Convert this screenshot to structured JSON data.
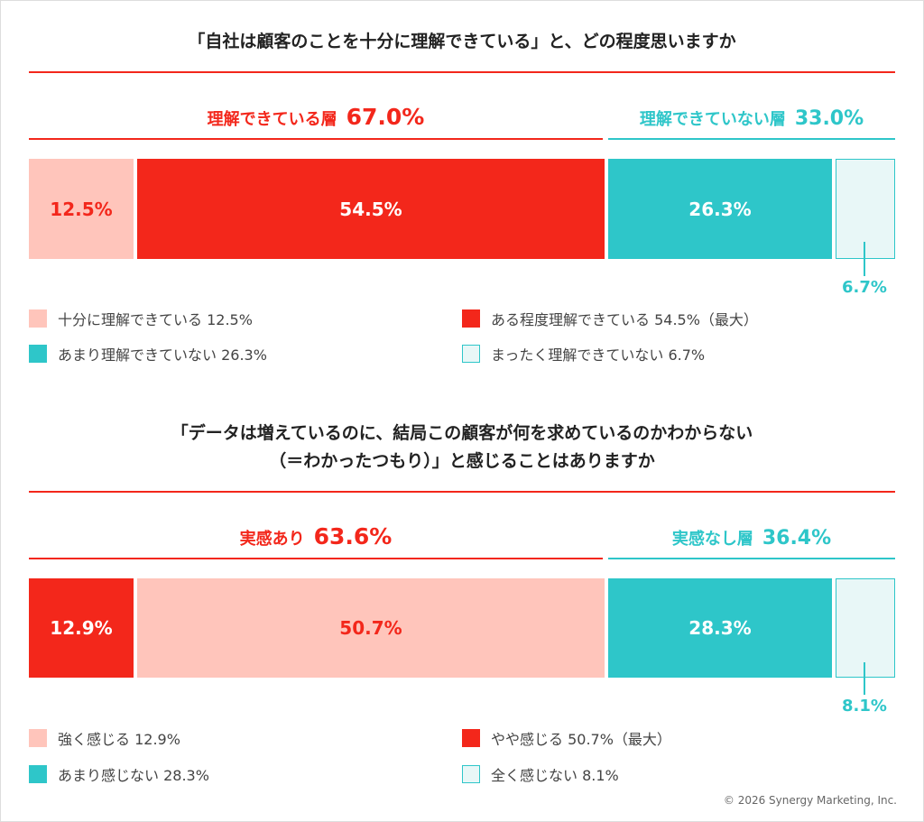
{
  "colors": {
    "red": "#f3271b",
    "pink": "#ffc5bb",
    "teal": "#2ec6c9",
    "lightTeal": "#e8f7f7",
    "tealBorder": "#2ec6c9"
  },
  "chart_data": [
    {
      "type": "bar",
      "title": "「自社は顧客のことを十分に理解できている」と、どの程度思いますか",
      "groups": [
        {
          "name": "理解できている層",
          "value": "67.0%"
        },
        {
          "name": "理解できていない層",
          "value": "33.0%"
        }
      ],
      "segments": [
        {
          "value": 12.5,
          "label": "12.5%",
          "color": "#ffc5bb",
          "text_color": "#f3271b"
        },
        {
          "value": 54.5,
          "label": "54.5%",
          "color": "#f3271b",
          "text_color": "#ffffff"
        },
        {
          "value": 26.3,
          "label": "26.3%",
          "color": "#2ec6c9",
          "text_color": "#ffffff"
        },
        {
          "value": 6.7,
          "label": "6.7%",
          "color": "#e8f7f7",
          "text_color": "#2ec6c9"
        }
      ],
      "legend": [
        {
          "text": "十分に理解できている 12.5%",
          "color": "#ffc5bb"
        },
        {
          "text": "ある程度理解できている 54.5%（最大）",
          "color": "#f3271b"
        },
        {
          "text": "あまり理解できていない 26.3%",
          "color": "#2ec6c9"
        },
        {
          "text": "まったく理解できていない 6.7%",
          "color": "#e8f7f7"
        }
      ]
    },
    {
      "type": "bar",
      "title_lines": [
        "「データは増えているのに、結局この顧客が何を求めているのかわからない",
        "（＝わかったつもり）」と感じることはありますか"
      ],
      "groups": [
        {
          "name": "実感あり",
          "value": "63.6%"
        },
        {
          "name": "実感なし層",
          "value": "36.4%"
        }
      ],
      "segments": [
        {
          "value": 12.9,
          "label": "12.9%",
          "color": "#f3271b",
          "text_color": "#ffffff"
        },
        {
          "value": 50.7,
          "label": "50.7%",
          "color": "#ffc5bb",
          "text_color": "#f3271b"
        },
        {
          "value": 28.3,
          "label": "28.3%",
          "color": "#2ec6c9",
          "text_color": "#ffffff"
        },
        {
          "value": 8.1,
          "label": "8.1%",
          "color": "#e8f7f7",
          "text_color": "#2ec6c9"
        }
      ],
      "legend": [
        {
          "text": "強く感じる 12.9%",
          "color": "#ffc5bb"
        },
        {
          "text": "やや感じる 50.7%（最大）",
          "color": "#f3271b"
        },
        {
          "text": "あまり感じない 28.3%",
          "color": "#2ec6c9"
        },
        {
          "text": "全く感じない 8.1%",
          "color": "#e8f7f7"
        }
      ]
    }
  ],
  "copyright": "© 2026 Synergy Marketing, Inc."
}
